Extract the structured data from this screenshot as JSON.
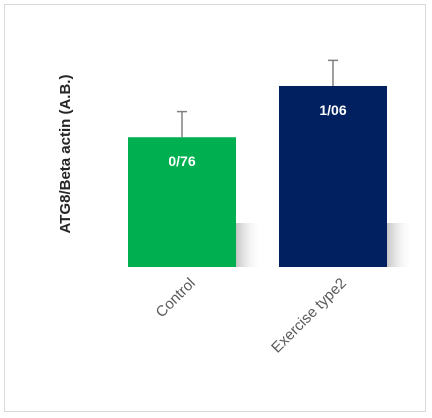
{
  "chart_data": {
    "type": "bar",
    "title": "",
    "xlabel": "",
    "ylabel": "ATG8/Beta actin (A.B.)",
    "categories": [
      "Control",
      "Exercise type2"
    ],
    "values": [
      0.76,
      1.06
    ],
    "data_labels": [
      "0/76",
      "1/06"
    ],
    "error": [
      0.15,
      0.15
    ],
    "colors": [
      "#00b050",
      "#002060"
    ],
    "ylim": [
      0,
      1.3
    ],
    "grid": false,
    "legend": "none"
  }
}
